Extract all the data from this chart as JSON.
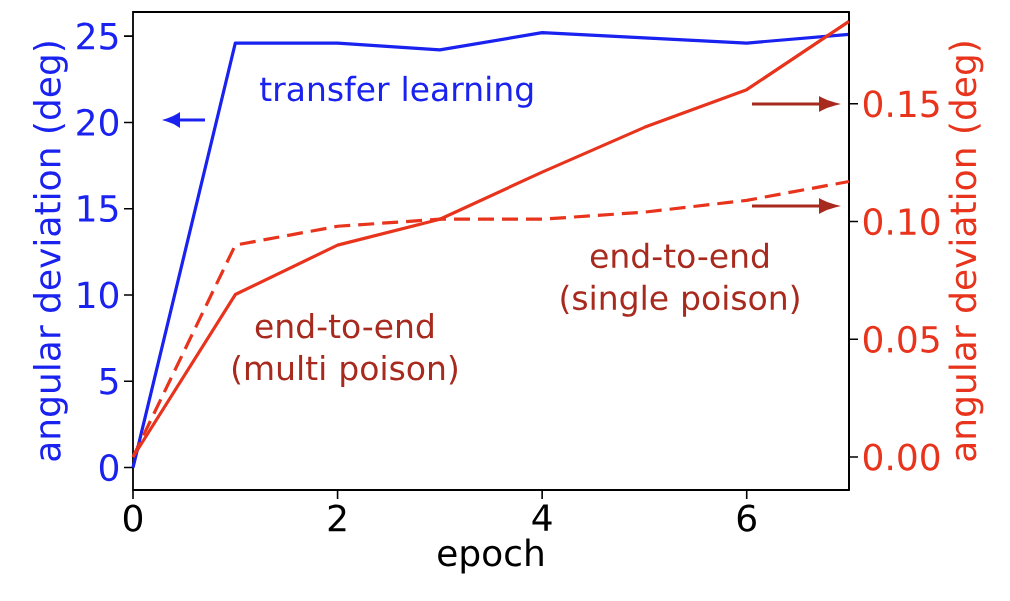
{
  "chart_data": {
    "type": "line",
    "xlabel": "epoch",
    "ylabel": "angular deviation (deg)",
    "y2label": "angular deviation (deg)",
    "x": [
      0,
      1,
      2,
      3,
      4,
      5,
      6,
      7
    ],
    "xlim": [
      0,
      7
    ],
    "xticks": [
      0,
      2,
      4,
      6
    ],
    "ylim": [
      -1.3,
      26.4
    ],
    "yticks": [
      0,
      5,
      10,
      15,
      20,
      25
    ],
    "y2lim": [
      -0.014,
      0.189
    ],
    "y2ticks": [
      {
        "value": 0,
        "label": "0.00"
      },
      {
        "value": 0.05,
        "label": "0.05"
      },
      {
        "value": 0.1,
        "label": "0.10"
      },
      {
        "value": 0.15,
        "label": "0.15"
      }
    ],
    "series": [
      {
        "name": "transfer learning",
        "color": "#1a22f0",
        "values": [
          0,
          24.6,
          24.6,
          24.2,
          25.2,
          24.9,
          24.6,
          25.1
        ]
      },
      {
        "name": "end-to-end (multi poison)",
        "color": "#e8341c",
        "axis": "y2",
        "values": [
          0,
          0.069,
          0.09,
          0.101,
          0.121,
          0.14,
          0.156,
          0.185
        ]
      },
      {
        "name": "end-to-end (single poison)",
        "color": "#e8341c",
        "axis": "y2",
        "line_style": "dashed",
        "values": [
          0,
          0.09,
          0.098,
          0.101,
          0.101,
          0.104,
          0.109,
          0.117
        ]
      }
    ]
  }
}
